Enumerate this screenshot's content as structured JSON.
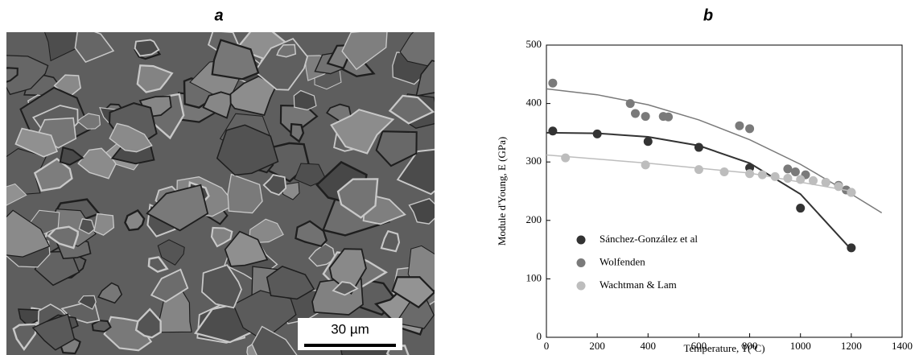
{
  "panel_a": {
    "label": "a",
    "scale_bar": "30 µm"
  },
  "panel_b": {
    "label": "b"
  },
  "chart_data": {
    "type": "scatter",
    "xlabel": "Temperature,  T(ºC)",
    "ylabel": "Module d'Young, E (GPa)",
    "xlim": [
      0,
      1400
    ],
    "ylim": [
      0,
      500
    ],
    "xticks": [
      0,
      200,
      400,
      600,
      800,
      1000,
      1200,
      1400
    ],
    "yticks": [
      0,
      100,
      200,
      300,
      400,
      500
    ],
    "legend": "lower left",
    "series": [
      {
        "name": "Sánchez-González et al",
        "color": "#333333",
        "x": [
          25,
          200,
          400,
          600,
          800,
          1000,
          1200
        ],
        "values": [
          353,
          348,
          335,
          325,
          290,
          221,
          153
        ],
        "fit_x": [
          0,
          200,
          400,
          600,
          800,
          1000,
          1200
        ],
        "fit_values": [
          350,
          349,
          343,
          328,
          298,
          245,
          150
        ]
      },
      {
        "name": "Wolfenden",
        "color": "#7a7a7a",
        "x": [
          25,
          330,
          350,
          390,
          460,
          480,
          760,
          800,
          950,
          980,
          1020,
          1100,
          1150,
          1180,
          1200
        ],
        "values": [
          435,
          400,
          383,
          378,
          378,
          377,
          362,
          357,
          288,
          283,
          278,
          265,
          260,
          252,
          248
        ],
        "fit_x": [
          0,
          200,
          400,
          600,
          800,
          1000,
          1200,
          1320
        ],
        "fit_values": [
          425,
          415,
          398,
          372,
          338,
          296,
          245,
          213
        ]
      },
      {
        "name": "Wachtman & Lam",
        "color": "#bdbdbd",
        "x": [
          75,
          390,
          600,
          700,
          800,
          850,
          900,
          950,
          1000,
          1050,
          1100,
          1150,
          1200
        ],
        "values": [
          307,
          295,
          287,
          283,
          280,
          278,
          275,
          272,
          270,
          268,
          265,
          258,
          248
        ],
        "fit_x": [
          0,
          400,
          800,
          1200
        ],
        "fit_values": [
          312,
          298,
          281,
          250
        ]
      }
    ]
  }
}
